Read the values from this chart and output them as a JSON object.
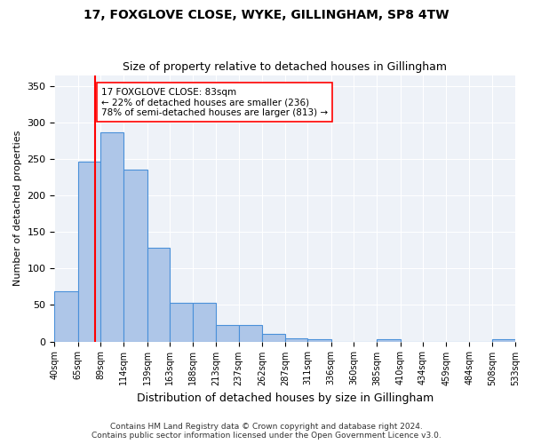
{
  "title1": "17, FOXGLOVE CLOSE, WYKE, GILLINGHAM, SP8 4TW",
  "title2": "Size of property relative to detached houses in Gillingham",
  "xlabel": "Distribution of detached houses by size in Gillingham",
  "ylabel": "Number of detached properties",
  "bar_edges": [
    40,
    65,
    89,
    114,
    139,
    163,
    188,
    213,
    237,
    262,
    287,
    311,
    336,
    360,
    385,
    410,
    434,
    459,
    484,
    508,
    533
  ],
  "bar_heights": [
    69,
    246,
    287,
    235,
    128,
    53,
    53,
    22,
    22,
    10,
    4,
    3,
    0,
    0,
    3,
    0,
    0,
    0,
    0,
    3
  ],
  "bar_color": "#aec6e8",
  "bar_edge_color": "#4a90d9",
  "bar_linewidth": 0.8,
  "vline_x": 83,
  "vline_color": "red",
  "vline_linewidth": 1.5,
  "annotation_text": "17 FOXGLOVE CLOSE: 83sqm\n← 22% of detached houses are smaller (236)\n78% of semi-detached houses are larger (813) →",
  "annotation_box_color": "white",
  "annotation_box_edgecolor": "red",
  "annotation_fontsize": 7.5,
  "ylim": [
    0,
    365
  ],
  "yticks": [
    0,
    50,
    100,
    150,
    200,
    250,
    300,
    350
  ],
  "background_color": "#eef2f8",
  "grid_color": "white",
  "footnote": "Contains HM Land Registry data © Crown copyright and database right 2024.\nContains public sector information licensed under the Open Government Licence v3.0.",
  "tick_labels": [
    "40sqm",
    "65sqm",
    "89sqm",
    "114sqm",
    "139sqm",
    "163sqm",
    "188sqm",
    "213sqm",
    "237sqm",
    "262sqm",
    "287sqm",
    "311sqm",
    "336sqm",
    "360sqm",
    "385sqm",
    "410sqm",
    "434sqm",
    "459sqm",
    "484sqm",
    "508sqm",
    "533sqm"
  ]
}
